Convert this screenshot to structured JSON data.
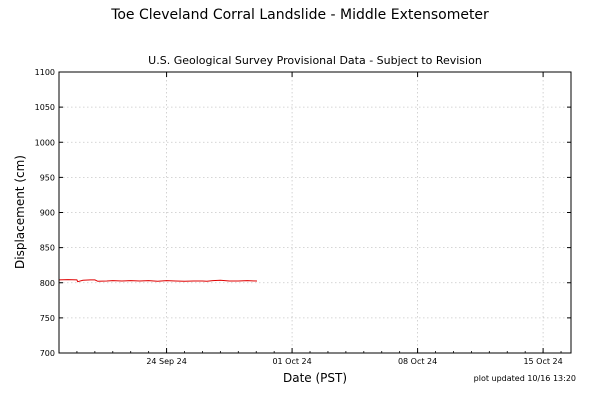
{
  "figure": {
    "title": "Toe Cleveland Corral Landslide - Middle Extensometer",
    "footnote": "plot updated 10/16 13:20"
  },
  "chart_data": {
    "type": "line",
    "title": "U.S. Geological Survey Provisional Data - Subject to Revision",
    "xlabel": "Date (PST)",
    "ylabel": "Displacement (cm)",
    "x_range": [
      "2024-09-18",
      "2024-10-16T13:20"
    ],
    "ylim": [
      700,
      1100
    ],
    "y_ticks": [
      700,
      750,
      800,
      850,
      900,
      950,
      1000,
      1050,
      1100
    ],
    "x_ticks": [
      {
        "date": "2024-09-24",
        "label": "24 Sep 24"
      },
      {
        "date": "2024-10-01",
        "label": "01 Oct 24"
      },
      {
        "date": "2024-10-08",
        "label": "08 Oct 24"
      },
      {
        "date": "2024-10-15",
        "label": "15 Oct 24"
      }
    ],
    "grid": true,
    "series": [
      {
        "color": "#e00000",
        "x": [
          "2024-09-18",
          "2024-09-18T12:00",
          "2024-09-19",
          "2024-09-19T01:00",
          "2024-09-19T08:00",
          "2024-09-19T18:00",
          "2024-09-20",
          "2024-09-20T04:00",
          "2024-09-20T16:00",
          "2024-09-21",
          "2024-09-21T12:00",
          "2024-09-22",
          "2024-09-22T12:00",
          "2024-09-23",
          "2024-09-23T12:00",
          "2024-09-24",
          "2024-09-24T12:00",
          "2024-09-25",
          "2024-09-25T12:00",
          "2024-09-26",
          "2024-09-26T06:00",
          "2024-09-26T14:00",
          "2024-09-27",
          "2024-09-27T12:00",
          "2024-09-28",
          "2024-09-28T12:00",
          "2024-09-29",
          "2024-09-29T01:00"
        ],
        "y": [
          804,
          804.5,
          804,
          801.5,
          803.5,
          804,
          804,
          802,
          802.5,
          803,
          802.5,
          803,
          802.5,
          803,
          802,
          803,
          802.5,
          802,
          802.5,
          802.5,
          802,
          803,
          803.5,
          802.5,
          802.5,
          803,
          802.5,
          802.5
        ]
      }
    ]
  }
}
